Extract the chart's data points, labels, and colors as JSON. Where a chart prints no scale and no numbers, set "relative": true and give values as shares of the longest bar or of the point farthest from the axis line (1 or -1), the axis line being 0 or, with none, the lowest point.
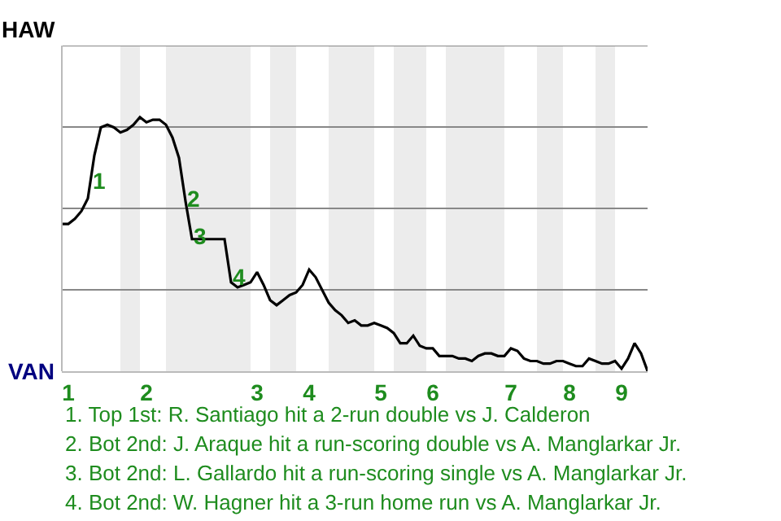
{
  "chart_data": {
    "type": "line",
    "relative": true,
    "categories": [
      null,
      "1",
      null,
      null,
      null,
      null,
      null,
      null,
      null,
      null,
      null,
      null,
      null,
      "2",
      null,
      null,
      null,
      null,
      null,
      null,
      null,
      null,
      null,
      null,
      null,
      null,
      null,
      null,
      null,
      null,
      "3",
      null,
      null,
      null,
      null,
      null,
      null,
      null,
      "4",
      null,
      null,
      null,
      null,
      null,
      null,
      null,
      null,
      null,
      null,
      "5",
      null,
      null,
      null,
      null,
      null,
      null,
      null,
      "6",
      null,
      null,
      null,
      null,
      null,
      null,
      null,
      null,
      null,
      null,
      null,
      "7",
      null,
      null,
      null,
      null,
      null,
      null,
      null,
      null,
      "8",
      null,
      null,
      null,
      null,
      null,
      null,
      null,
      "9",
      null,
      null,
      null,
      null
    ],
    "series": [
      {
        "color": "#000000",
        "values": [
          0.58,
          0.58,
          0.6,
          0.63,
          0.68,
          0.85,
          0.96,
          0.97,
          0.96,
          0.94,
          0.95,
          0.97,
          1,
          0.98,
          0.99,
          0.99,
          0.97,
          0.92,
          0.84,
          0.67,
          0.52,
          0.52,
          0.52,
          0.52,
          0.52,
          0.52,
          0.35,
          0.33,
          0.34,
          0.35,
          0.39,
          0.34,
          0.28,
          0.26,
          0.28,
          0.3,
          0.31,
          0.34,
          0.4,
          0.37,
          0.32,
          0.27,
          0.24,
          0.22,
          0.19,
          0.2,
          0.18,
          0.18,
          0.19,
          0.18,
          0.17,
          0.15,
          0.11,
          0.11,
          0.14,
          0.1,
          0.09,
          0.09,
          0.06,
          0.06,
          0.06,
          0.05,
          0.05,
          0.04,
          0.06,
          0.07,
          0.07,
          0.06,
          0.06,
          0.09,
          0.08,
          0.05,
          0.04,
          0.04,
          0.03,
          0.03,
          0.04,
          0.04,
          0.03,
          0.02,
          0.02,
          0.05,
          0.04,
          0.03,
          0.03,
          0.04,
          0.01,
          0.05,
          0.11,
          0.07,
          0
        ]
      }
    ],
    "grid": "y",
    "legend": false,
    "marker": "none",
    "line_style": "solid",
    "annotations": [
      {
        "text": "1",
        "y": 0.75
      },
      {
        "text": "2",
        "y": 0.68
      },
      {
        "text": "3",
        "y": 0.53
      },
      {
        "text": "4",
        "y": 0.37
      },
      "HAW",
      "VAN",
      "1. Top 1st: R. Santiago hit a 2-run double vs J. Calderon",
      "2. Bot 2nd: J. Araque hit a run-scoring double vs A. Manglarkar Jr.",
      "3. Bot 2nd: L. Gallardo hit a run-scoring single vs A. Manglarkar Jr.",
      "4. Bot 2nd: W. Hagner hit a 3-run home run vs A. Manglarkar Jr."
    ]
  }
}
